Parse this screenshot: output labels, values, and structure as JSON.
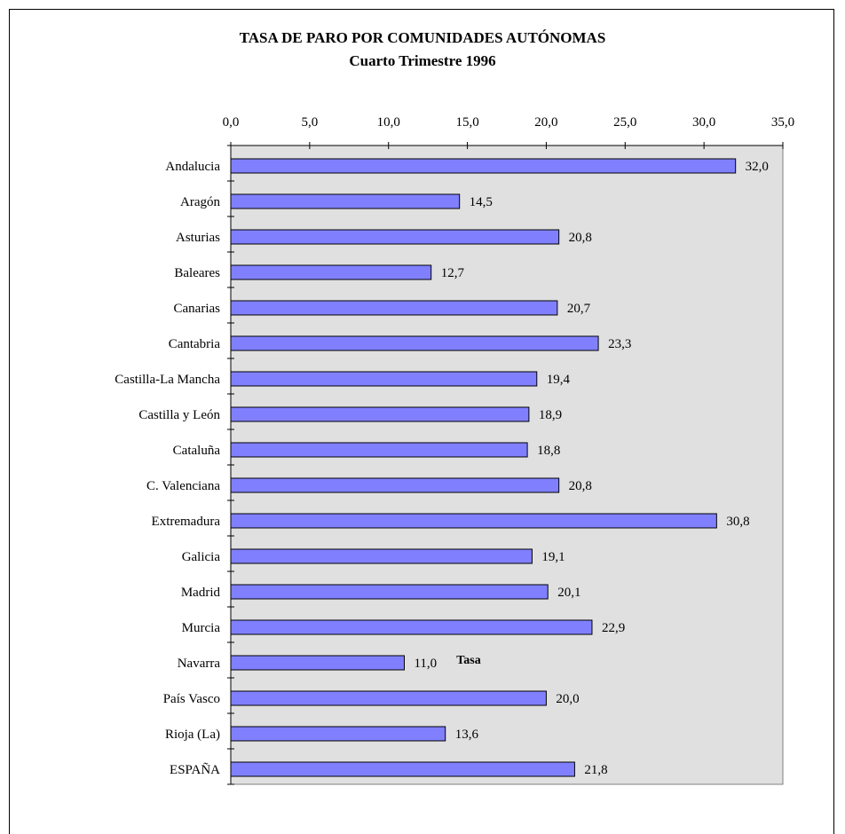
{
  "chart_data": {
    "type": "bar",
    "orientation": "horizontal",
    "title": "TASA DE PARO POR COMUNIDADES AUTÓNOMAS",
    "subtitle": "Cuarto Trimestre 1996",
    "xlabel": "Tasa",
    "ylabel": "",
    "xlim": [
      0,
      35
    ],
    "x_ticks": [
      "0,0",
      "5,0",
      "10,0",
      "15,0",
      "20,0",
      "25,0",
      "30,0",
      "35,0"
    ],
    "x_axis_position": "top",
    "grid": false,
    "legend": "none",
    "bar_color": "#8080ff",
    "plot_background": "#e0e0e0",
    "categories": [
      "Andalucia",
      "Aragón",
      "Asturias",
      "Baleares",
      "Canarias",
      "Cantabria",
      "Castilla-La Mancha",
      "Castilla y León",
      "Cataluña",
      "C. Valenciana",
      "Extremadura",
      "Galicia",
      "Madrid",
      "Murcia",
      "Navarra",
      "País Vasco",
      "Rioja (La)",
      "ESPAÑA"
    ],
    "values": [
      32.0,
      14.5,
      20.8,
      12.7,
      20.7,
      23.3,
      19.4,
      18.9,
      18.8,
      20.8,
      30.8,
      19.1,
      20.1,
      22.9,
      11.0,
      20.0,
      13.6,
      21.8
    ],
    "data_labels": [
      "32,0",
      "14,5",
      "20,8",
      "12,7",
      "20,7",
      "23,3",
      "19,4",
      "18,9",
      "18,8",
      "20,8",
      "30,8",
      "19,1",
      "20,1",
      "22,9",
      "11,0",
      "20,0",
      "13,6",
      "21,8"
    ]
  }
}
